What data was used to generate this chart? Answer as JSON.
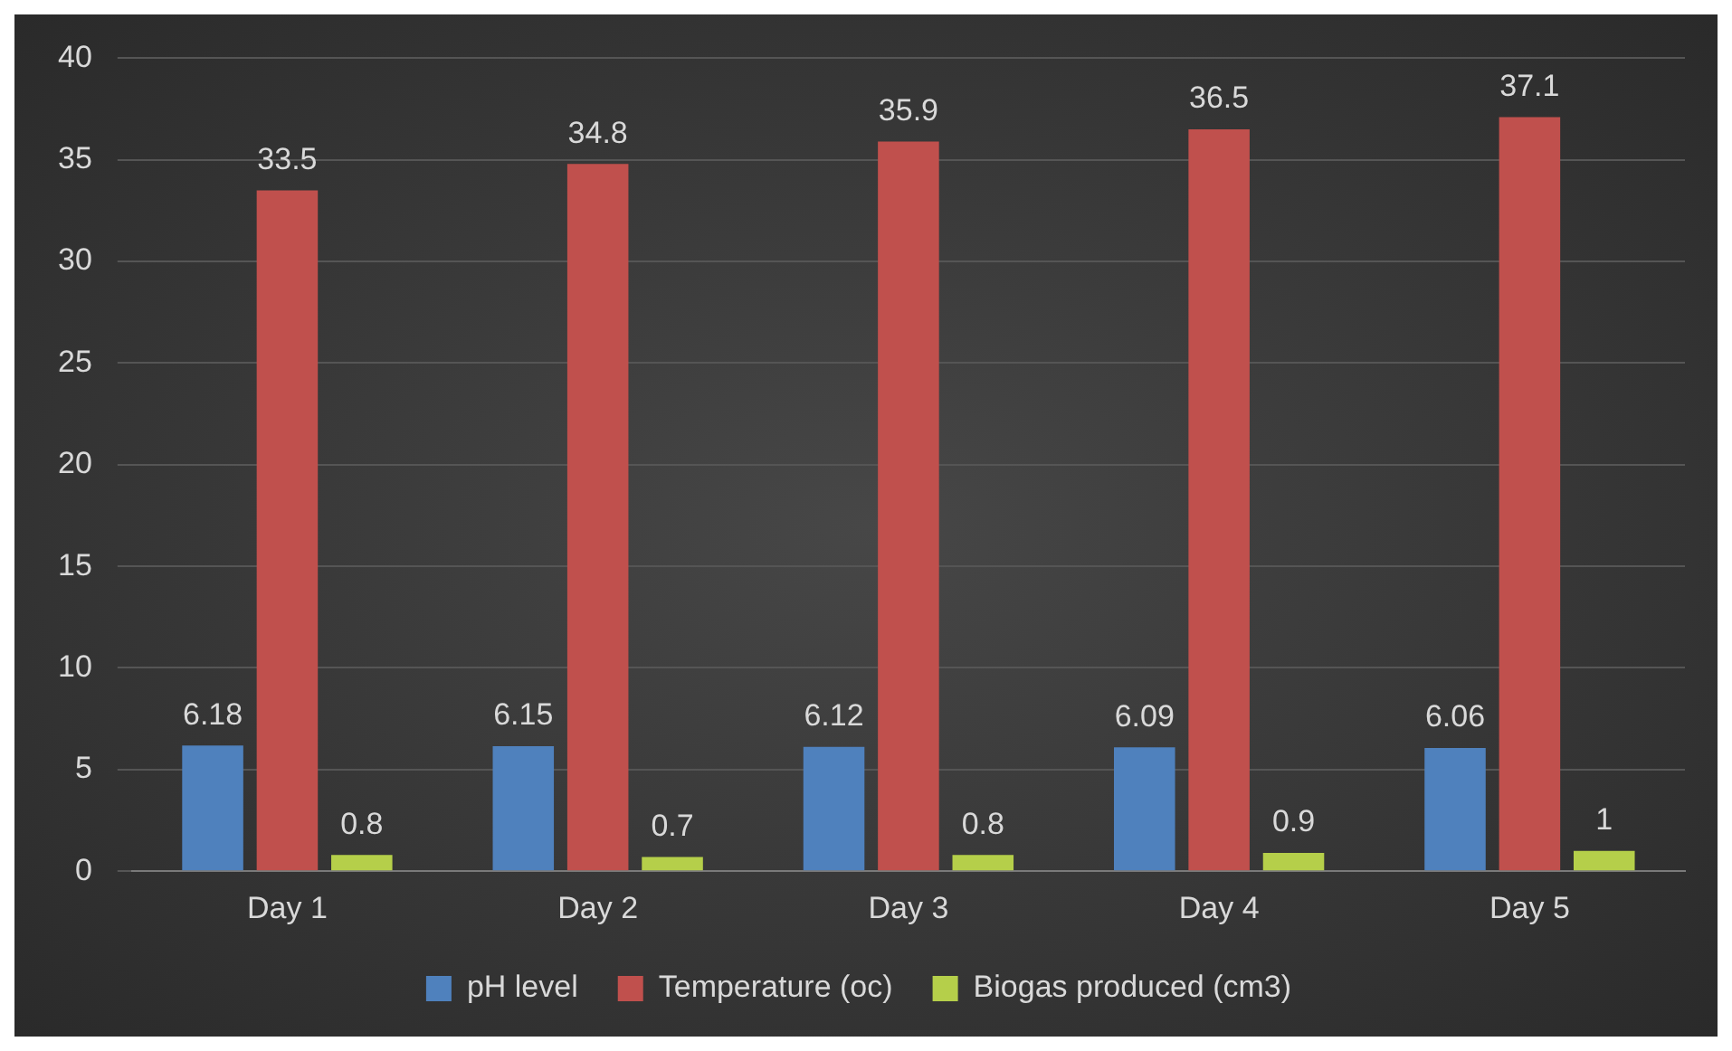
{
  "chart_data": {
    "type": "bar",
    "categories": [
      "Day 1",
      "Day 2",
      "Day 3",
      "Day 4",
      "Day 5"
    ],
    "series": [
      {
        "name": "pH level",
        "color": "#4f81bd",
        "values": [
          6.18,
          6.15,
          6.12,
          6.09,
          6.06
        ]
      },
      {
        "name": "Temperature (oc)",
        "color": "#c0504d",
        "values": [
          33.5,
          34.8,
          35.9,
          36.5,
          37.1
        ]
      },
      {
        "name": "Biogas produced (cm3)",
        "color": "#b5cf4a",
        "values": [
          0.8,
          0.7,
          0.8,
          0.9,
          1
        ]
      }
    ],
    "ylim": [
      0,
      40
    ],
    "yticks": [
      0,
      5,
      10,
      15,
      20,
      25,
      30,
      35,
      40
    ],
    "grid": "y",
    "legend": "bottom",
    "data_labels": true
  }
}
